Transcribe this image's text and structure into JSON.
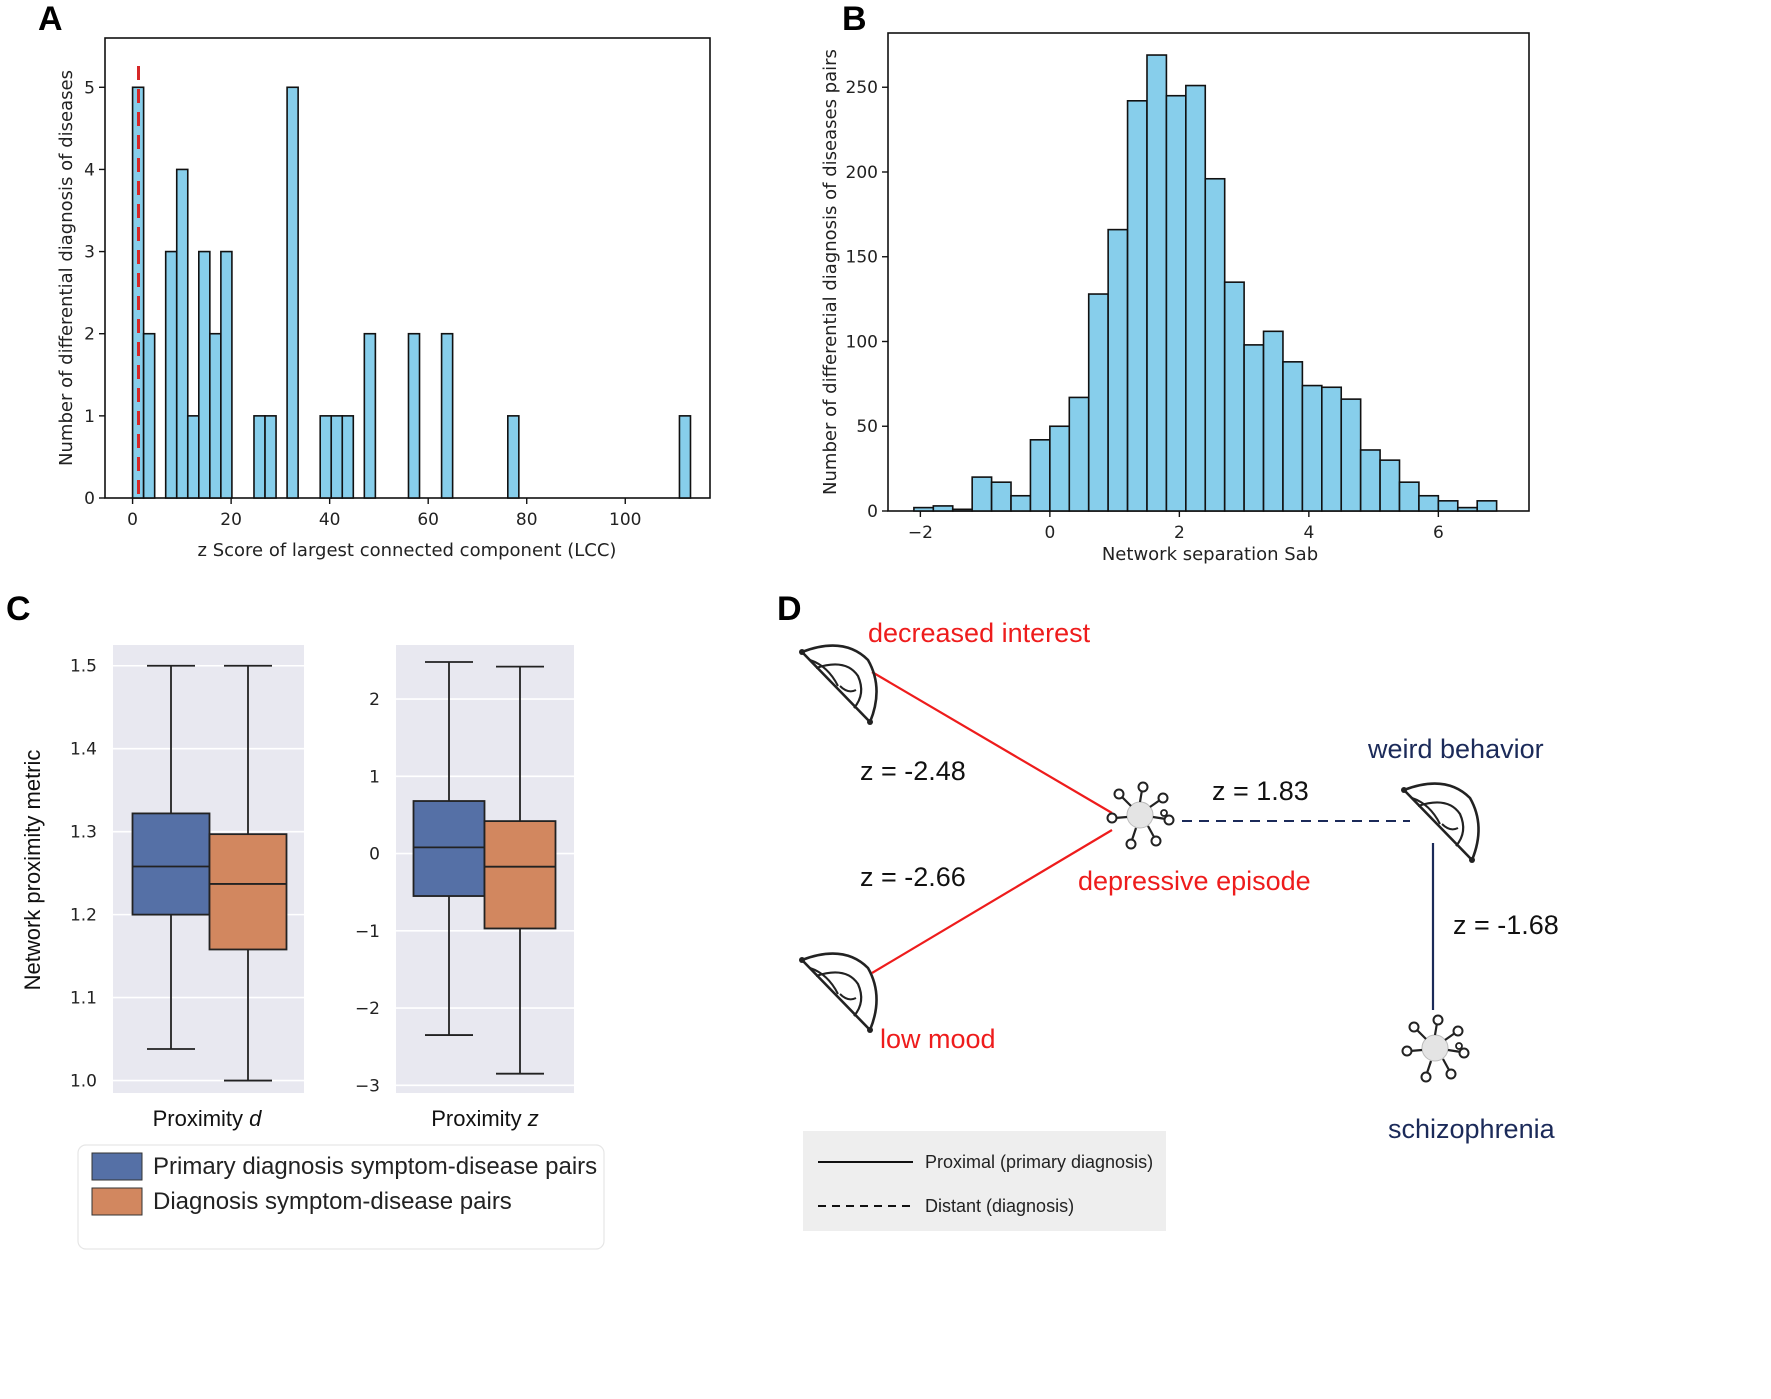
{
  "panels": {
    "A": "A",
    "B": "B",
    "C": "C",
    "D": "D"
  },
  "colors": {
    "bar_fill": "#87ceeb",
    "median_line": "#d62728",
    "box_primary": "#5570a6",
    "box_diagnosis": "#d2875f",
    "box_bg": "#e8e8f0",
    "red_text": "#ee1c1c",
    "navy_text": "#1b2a59"
  },
  "chart_data": [
    {
      "id": "A",
      "type": "bar",
      "title": "",
      "xlabel": "z Score of largest connected component (LCC)",
      "ylabel": "Number of differential diagnosis of diseases",
      "xlim": [
        -5.6,
        117.2
      ],
      "ylim": [
        0,
        5.6
      ],
      "xticks": [
        "0",
        "20",
        "40",
        "60",
        "80",
        "100"
      ],
      "yticks": [
        "0",
        "1",
        "2",
        "3",
        "4",
        "5"
      ],
      "bin_width": 2.24,
      "bins": [
        {
          "x": 0,
          "value": 5
        },
        {
          "x": 2.24,
          "value": 2
        },
        {
          "x": 6.72,
          "value": 3
        },
        {
          "x": 8.96,
          "value": 4
        },
        {
          "x": 11.2,
          "value": 1
        },
        {
          "x": 13.44,
          "value": 3
        },
        {
          "x": 15.68,
          "value": 2
        },
        {
          "x": 17.92,
          "value": 3
        },
        {
          "x": 24.64,
          "value": 1
        },
        {
          "x": 26.88,
          "value": 1
        },
        {
          "x": 31.36,
          "value": 5
        },
        {
          "x": 38.08,
          "value": 1
        },
        {
          "x": 40.32,
          "value": 1
        },
        {
          "x": 42.56,
          "value": 1
        },
        {
          "x": 47.04,
          "value": 2
        },
        {
          "x": 56.0,
          "value": 2
        },
        {
          "x": 62.72,
          "value": 2
        },
        {
          "x": 76.16,
          "value": 1
        },
        {
          "x": 111.0,
          "value": 1
        }
      ],
      "reference_line_x": 1.2
    },
    {
      "id": "B",
      "type": "bar",
      "title": "",
      "xlabel": "Network separation Sab",
      "ylabel": "Number of differential diagnosis of diseases pairs",
      "xlim": [
        -2.5,
        7.4
      ],
      "ylim": [
        0,
        282
      ],
      "xticks": [
        "−2",
        "0",
        "2",
        "4",
        "6"
      ],
      "yticks": [
        "0",
        "50",
        "100",
        "150",
        "200",
        "250"
      ],
      "bin_width": 0.3,
      "bins": [
        {
          "x": -2.1,
          "value": 2
        },
        {
          "x": -1.8,
          "value": 3
        },
        {
          "x": -1.5,
          "value": 1
        },
        {
          "x": -1.2,
          "value": 20
        },
        {
          "x": -0.9,
          "value": 17
        },
        {
          "x": -0.6,
          "value": 9
        },
        {
          "x": -0.3,
          "value": 42
        },
        {
          "x": 0.0,
          "value": 50
        },
        {
          "x": 0.3,
          "value": 67
        },
        {
          "x": 0.6,
          "value": 128
        },
        {
          "x": 0.9,
          "value": 166
        },
        {
          "x": 1.2,
          "value": 242
        },
        {
          "x": 1.5,
          "value": 269
        },
        {
          "x": 1.8,
          "value": 245
        },
        {
          "x": 2.1,
          "value": 251
        },
        {
          "x": 2.4,
          "value": 196
        },
        {
          "x": 2.7,
          "value": 135
        },
        {
          "x": 3.0,
          "value": 98
        },
        {
          "x": 3.3,
          "value": 106
        },
        {
          "x": 3.6,
          "value": 88
        },
        {
          "x": 3.9,
          "value": 74
        },
        {
          "x": 4.2,
          "value": 73
        },
        {
          "x": 4.5,
          "value": 66
        },
        {
          "x": 4.8,
          "value": 36
        },
        {
          "x": 5.1,
          "value": 30
        },
        {
          "x": 5.4,
          "value": 17
        },
        {
          "x": 5.7,
          "value": 9
        },
        {
          "x": 6.0,
          "value": 6
        },
        {
          "x": 6.3,
          "value": 2
        },
        {
          "x": 6.6,
          "value": 6
        }
      ]
    },
    {
      "id": "C",
      "type": "box",
      "ylabel": "Network proximity metric",
      "subplots": [
        {
          "xlabel_prefix": "Proximity ",
          "xlabel_var": "d",
          "ylim": [
            0.985,
            1.525
          ],
          "yticks": [
            "1.0",
            "1.1",
            "1.2",
            "1.3",
            "1.4",
            "1.5"
          ],
          "ytick_values": [
            1.0,
            1.1,
            1.2,
            1.3,
            1.4,
            1.5
          ],
          "boxes": [
            {
              "series": "primary",
              "whisker_low": 1.038,
              "q1": 1.2,
              "median": 1.258,
              "q3": 1.322,
              "whisker_high": 1.5
            },
            {
              "series": "diagnosis",
              "whisker_low": 1.0,
              "q1": 1.158,
              "median": 1.237,
              "q3": 1.297,
              "whisker_high": 1.5
            }
          ]
        },
        {
          "xlabel_prefix": "Proximity ",
          "xlabel_var": "z",
          "ylim": [
            -3.1,
            2.7
          ],
          "yticks": [
            "−3",
            "−2",
            "−1",
            "0",
            "1",
            "2"
          ],
          "ytick_values": [
            -3,
            -2,
            -1,
            0,
            1,
            2
          ],
          "boxes": [
            {
              "series": "primary",
              "whisker_low": -2.35,
              "q1": -0.55,
              "median": 0.08,
              "q3": 0.68,
              "whisker_high": 2.48
            },
            {
              "series": "diagnosis",
              "whisker_low": -2.85,
              "q1": -0.97,
              "median": -0.17,
              "q3": 0.42,
              "whisker_high": 2.42
            }
          ]
        }
      ],
      "legend": [
        {
          "series": "primary",
          "label": "Primary diagnosis symptom-disease pairs"
        },
        {
          "series": "diagnosis",
          "label": "Diagnosis symptom-disease pairs"
        }
      ]
    }
  ],
  "network": {
    "nodes": {
      "decreased_interest": "decreased interest",
      "low_mood": "low mood",
      "depressive_episode": "depressive episode",
      "weird_behavior": "weird behavior",
      "schizophrenia": "schizophrenia"
    },
    "edges": {
      "di_de": "z = -2.48",
      "lm_de": "z = -2.66",
      "de_wb": "z = 1.83",
      "wb_sc": "z = -1.68"
    },
    "legend": {
      "proximal": "Proximal (primary diagnosis)",
      "distant": "Distant (diagnosis)"
    }
  }
}
